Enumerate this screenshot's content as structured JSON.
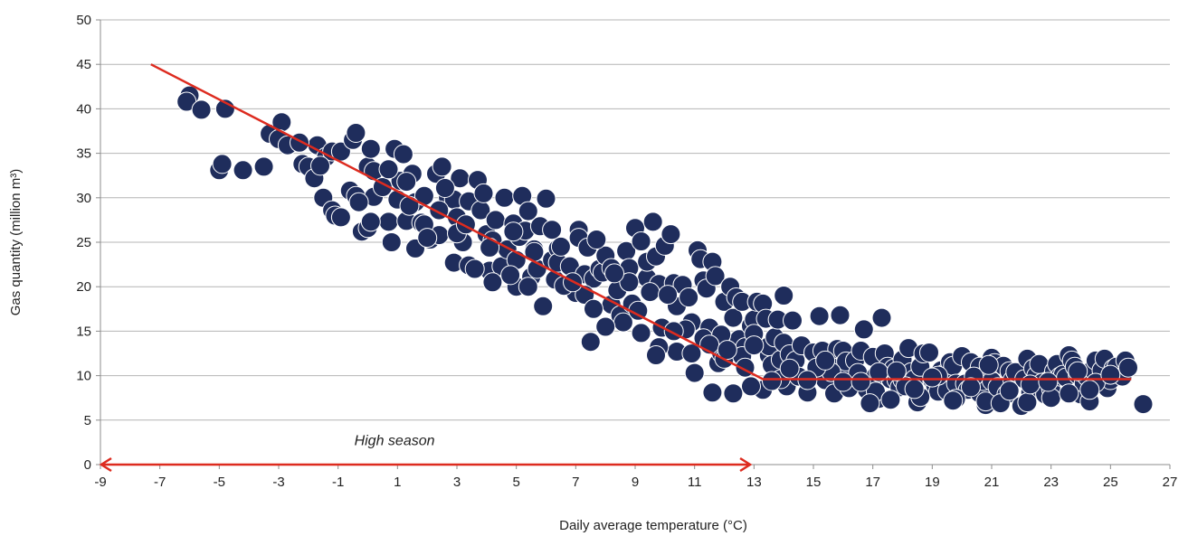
{
  "chart_data": {
    "type": "scatter",
    "xlabel": "Daily average temperature (°C)",
    "ylabel": "Gas quantity (million m³)",
    "xlim": [
      -9,
      27
    ],
    "ylim": [
      0,
      50
    ],
    "x_ticks": [
      -9,
      -7,
      -5,
      -3,
      -1,
      1,
      3,
      5,
      7,
      9,
      11,
      13,
      15,
      17,
      19,
      21,
      23,
      25,
      27
    ],
    "y_ticks": [
      0,
      5,
      10,
      15,
      20,
      25,
      30,
      35,
      40,
      45,
      50
    ],
    "grid": "horizontal",
    "legend": "none",
    "colors": {
      "points": "#1f2d5c",
      "fit_line": "#dd2b1f",
      "grid": "#b4b4b4",
      "axis": "#8c8c8c"
    },
    "fit_line": [
      [
        -7.3,
        45
      ],
      [
        13.3,
        9.6
      ],
      [
        25.7,
        9.6
      ]
    ],
    "annotation": {
      "text": "High season",
      "x_from": -9,
      "x_to": 12.9,
      "y": 0,
      "label_x": 0.9,
      "label_y": 2.2
    },
    "points": [
      [
        -6.0,
        41.5
      ],
      [
        -6.1,
        40.8
      ],
      [
        -5.6,
        39.9
      ],
      [
        -4.8,
        40.0
      ],
      [
        -5.0,
        33.1
      ],
      [
        -4.9,
        33.8
      ],
      [
        -4.2,
        33.1
      ],
      [
        -3.5,
        33.5
      ],
      [
        -3.3,
        37.2
      ],
      [
        -2.9,
        38.5
      ],
      [
        -3.0,
        36.6
      ],
      [
        -2.7,
        35.9
      ],
      [
        -2.2,
        33.8
      ],
      [
        -2.0,
        33.5
      ],
      [
        -1.8,
        32.2
      ],
      [
        -1.7,
        35.9
      ],
      [
        -1.5,
        30.0
      ],
      [
        -1.4,
        34.6
      ],
      [
        -1.2,
        35.2
      ],
      [
        -1.2,
        28.6
      ],
      [
        -1.1,
        28.0
      ],
      [
        -0.9,
        35.2
      ],
      [
        -0.6,
        30.8
      ],
      [
        -0.4,
        30.2
      ],
      [
        -0.5,
        36.5
      ],
      [
        -0.4,
        37.3
      ],
      [
        -0.2,
        26.2
      ],
      [
        0.0,
        33.5
      ],
      [
        0.1,
        35.5
      ],
      [
        0.0,
        26.6
      ],
      [
        0.2,
        33.0
      ],
      [
        0.2,
        30.1
      ],
      [
        0.5,
        31.2
      ],
      [
        0.7,
        27.3
      ],
      [
        0.9,
        35.5
      ],
      [
        1.0,
        29.8
      ],
      [
        1.2,
        34.9
      ],
      [
        1.1,
        31.9
      ],
      [
        1.3,
        27.4
      ],
      [
        1.5,
        32.7
      ],
      [
        1.6,
        29.5
      ],
      [
        1.6,
        24.3
      ],
      [
        1.8,
        27.2
      ],
      [
        1.9,
        30.2
      ],
      [
        2.1,
        25.3
      ],
      [
        2.3,
        32.7
      ],
      [
        2.4,
        25.8
      ],
      [
        2.5,
        33.5
      ],
      [
        2.7,
        30.0
      ],
      [
        2.9,
        29.8
      ],
      [
        2.9,
        22.7
      ],
      [
        3.1,
        32.2
      ],
      [
        3.0,
        27.8
      ],
      [
        3.2,
        25.0
      ],
      [
        3.4,
        29.6
      ],
      [
        3.4,
        22.4
      ],
      [
        3.7,
        32.0
      ],
      [
        3.8,
        28.6
      ],
      [
        3.9,
        30.5
      ],
      [
        4.0,
        25.9
      ],
      [
        4.1,
        21.8
      ],
      [
        4.2,
        25.2
      ],
      [
        4.3,
        27.5
      ],
      [
        4.5,
        22.3
      ],
      [
        4.6,
        30.0
      ],
      [
        4.7,
        24.2
      ],
      [
        4.9,
        27.1
      ],
      [
        5.0,
        23.0
      ],
      [
        5.0,
        20.0
      ],
      [
        5.1,
        25.6
      ],
      [
        5.2,
        30.2
      ],
      [
        5.3,
        26.3
      ],
      [
        5.4,
        28.5
      ],
      [
        5.5,
        21.1
      ],
      [
        5.6,
        24.2
      ],
      [
        5.7,
        22.0
      ],
      [
        5.8,
        26.8
      ],
      [
        6.0,
        29.9
      ],
      [
        6.2,
        23.0
      ],
      [
        6.3,
        20.8
      ],
      [
        6.4,
        24.3
      ],
      [
        6.4,
        22.7
      ],
      [
        6.8,
        22.3
      ],
      [
        7.0,
        19.3
      ],
      [
        7.1,
        26.4
      ],
      [
        7.1,
        25.5
      ],
      [
        7.4,
        24.4
      ],
      [
        7.3,
        21.4
      ],
      [
        7.5,
        13.8
      ],
      [
        7.6,
        20.9
      ],
      [
        7.8,
        22.0
      ],
      [
        7.9,
        21.6
      ],
      [
        8.0,
        23.5
      ],
      [
        8.2,
        22.1
      ],
      [
        8.2,
        18.0
      ],
      [
        8.4,
        19.6
      ],
      [
        8.5,
        16.8
      ],
      [
        8.7,
        24.0
      ],
      [
        8.8,
        22.1
      ],
      [
        8.9,
        18.1
      ],
      [
        9.0,
        26.6
      ],
      [
        9.2,
        25.1
      ],
      [
        9.4,
        21.0
      ],
      [
        9.4,
        22.8
      ],
      [
        9.6,
        27.3
      ],
      [
        9.7,
        23.4
      ],
      [
        9.8,
        20.3
      ],
      [
        9.9,
        15.4
      ],
      [
        10.0,
        24.6
      ],
      [
        10.2,
        25.9
      ],
      [
        10.3,
        20.4
      ],
      [
        10.4,
        17.8
      ],
      [
        10.6,
        20.2
      ],
      [
        10.8,
        18.8
      ],
      [
        10.9,
        16.0
      ],
      [
        11.1,
        24.1
      ],
      [
        11.2,
        23.1
      ],
      [
        11.3,
        20.7
      ],
      [
        11.4,
        19.8
      ],
      [
        11.5,
        15.4
      ],
      [
        11.6,
        22.8
      ],
      [
        11.7,
        21.2
      ],
      [
        11.8,
        11.4
      ],
      [
        11.9,
        12.5
      ],
      [
        12.0,
        18.3
      ],
      [
        12.0,
        11.9
      ],
      [
        12.2,
        20.0
      ],
      [
        12.3,
        16.5
      ],
      [
        12.4,
        18.8
      ],
      [
        12.5,
        14.1
      ],
      [
        12.6,
        18.3
      ],
      [
        12.7,
        13.2
      ],
      [
        12.9,
        15.6
      ],
      [
        13.0,
        16.3
      ],
      [
        13.0,
        14.7
      ],
      [
        13.1,
        18.3
      ],
      [
        13.3,
        18.1
      ],
      [
        13.4,
        16.4
      ],
      [
        13.5,
        12.3
      ],
      [
        13.5,
        13.3
      ],
      [
        13.6,
        11.2
      ],
      [
        13.7,
        14.3
      ],
      [
        13.8,
        16.3
      ],
      [
        13.9,
        11.8
      ],
      [
        14.0,
        19.0
      ],
      [
        14.0,
        13.7
      ],
      [
        14.1,
        8.8
      ],
      [
        14.2,
        12.4
      ],
      [
        14.3,
        16.2
      ],
      [
        14.4,
        11.7
      ],
      [
        14.6,
        13.4
      ],
      [
        14.8,
        8.1
      ],
      [
        15.0,
        12.6
      ],
      [
        15.2,
        16.7
      ],
      [
        15.3,
        12.8
      ],
      [
        15.4,
        9.5
      ],
      [
        15.5,
        11.3
      ],
      [
        15.7,
        8.0
      ],
      [
        15.8,
        13.0
      ],
      [
        15.9,
        16.8
      ],
      [
        16.0,
        10.2
      ],
      [
        16.0,
        12.8
      ],
      [
        16.1,
        11.6
      ],
      [
        16.3,
        9.0
      ],
      [
        16.4,
        11.7
      ],
      [
        16.5,
        10.3
      ],
      [
        16.6,
        12.8
      ],
      [
        16.7,
        15.2
      ],
      [
        16.8,
        8.4
      ],
      [
        17.0,
        12.1
      ],
      [
        17.1,
        10.0
      ],
      [
        17.2,
        7.4
      ],
      [
        17.3,
        16.5
      ],
      [
        17.4,
        12.5
      ],
      [
        17.5,
        11.0
      ],
      [
        17.6,
        9.6
      ],
      [
        17.7,
        10.8
      ],
      [
        17.8,
        9.5
      ],
      [
        17.9,
        8.7
      ],
      [
        18.0,
        9.5
      ],
      [
        18.0,
        11.8
      ],
      [
        18.2,
        13.1
      ],
      [
        18.3,
        10.4
      ],
      [
        18.4,
        9.6
      ],
      [
        18.5,
        7.0
      ],
      [
        18.6,
        11.0
      ],
      [
        18.7,
        12.5
      ],
      [
        18.9,
        12.6
      ],
      [
        19.0,
        9.5
      ],
      [
        19.1,
        8.9
      ],
      [
        19.2,
        8.2
      ],
      [
        19.3,
        10.6
      ],
      [
        19.4,
        10.2
      ],
      [
        19.5,
        8.3
      ],
      [
        19.6,
        11.5
      ],
      [
        19.7,
        11.1
      ],
      [
        19.8,
        9.1
      ],
      [
        20.0,
        12.2
      ],
      [
        20.1,
        9.1
      ],
      [
        20.2,
        8.4
      ],
      [
        20.3,
        11.5
      ],
      [
        20.5,
        10.2
      ],
      [
        20.6,
        8.0
      ],
      [
        20.6,
        11.0
      ],
      [
        20.7,
        9.4
      ],
      [
        20.8,
        6.7
      ],
      [
        20.8,
        7.1
      ],
      [
        20.9,
        10.7
      ],
      [
        21.0,
        9.4
      ],
      [
        21.0,
        12.0
      ],
      [
        21.1,
        11.4
      ],
      [
        21.2,
        8.7
      ],
      [
        21.4,
        11.1
      ],
      [
        21.5,
        7.9
      ],
      [
        21.6,
        10.5
      ],
      [
        21.7,
        9.5
      ],
      [
        21.8,
        10.4
      ],
      [
        22.0,
        6.6
      ],
      [
        22.1,
        9.6
      ],
      [
        22.2,
        11.9
      ],
      [
        22.3,
        8.1
      ],
      [
        22.4,
        10.8
      ],
      [
        22.5,
        10.0
      ],
      [
        22.6,
        11.3
      ],
      [
        22.7,
        9.2
      ],
      [
        22.8,
        7.9
      ],
      [
        23.0,
        8.5
      ],
      [
        23.1,
        10.5
      ],
      [
        23.2,
        11.3
      ],
      [
        23.3,
        9.9
      ],
      [
        23.4,
        10.1
      ],
      [
        23.5,
        9.8
      ],
      [
        23.6,
        12.3
      ],
      [
        23.7,
        11.7
      ],
      [
        23.8,
        11.0
      ],
      [
        23.9,
        10.1
      ],
      [
        24.0,
        7.9
      ],
      [
        24.1,
        9.2
      ],
      [
        24.2,
        9.9
      ],
      [
        24.3,
        7.1
      ],
      [
        24.4,
        10.7
      ],
      [
        24.5,
        11.7
      ],
      [
        24.6,
        9.1
      ],
      [
        24.7,
        10.6
      ],
      [
        24.8,
        11.9
      ],
      [
        24.9,
        8.6
      ],
      [
        25.0,
        9.5
      ],
      [
        25.1,
        10.8
      ],
      [
        25.2,
        11.0
      ],
      [
        25.4,
        9.9
      ],
      [
        25.5,
        11.7
      ],
      [
        25.6,
        10.9
      ],
      [
        26.1,
        6.8
      ],
      [
        17.1,
        8.2
      ],
      [
        17.6,
        7.3
      ],
      [
        18.1,
        8.8
      ],
      [
        18.6,
        7.6
      ],
      [
        19.2,
        10.0
      ],
      [
        19.8,
        7.4
      ],
      [
        20.4,
        9.9
      ],
      [
        21.3,
        6.9
      ],
      [
        22.2,
        7.0
      ],
      [
        23.0,
        7.5
      ],
      [
        23.9,
        10.5
      ],
      [
        24.5,
        9.2
      ],
      [
        16.9,
        6.9
      ],
      [
        15.6,
        10.4
      ],
      [
        16.2,
        8.6
      ],
      [
        15.1,
        10.9
      ],
      [
        14.5,
        9.9
      ],
      [
        13.9,
        9.6
      ],
      [
        13.3,
        8.4
      ],
      [
        12.9,
        8.8
      ],
      [
        12.3,
        8.0
      ],
      [
        11.6,
        8.1
      ],
      [
        11.0,
        10.3
      ],
      [
        10.4,
        12.7
      ],
      [
        9.8,
        13.2
      ],
      [
        9.2,
        14.8
      ],
      [
        8.6,
        16.0
      ],
      [
        8.0,
        15.5
      ],
      [
        7.3,
        19.1
      ],
      [
        6.6,
        20.1
      ],
      [
        5.9,
        17.8
      ],
      [
        5.4,
        20.0
      ],
      [
        4.8,
        21.3
      ],
      [
        4.2,
        20.5
      ],
      [
        3.6,
        22.0
      ],
      [
        3.0,
        26.0
      ],
      [
        2.4,
        28.6
      ],
      [
        1.9,
        27.0
      ],
      [
        1.3,
        31.8
      ],
      [
        0.7,
        33.2
      ],
      [
        0.1,
        27.3
      ],
      [
        -0.3,
        29.5
      ],
      [
        -0.9,
        27.8
      ],
      [
        -1.6,
        33.6
      ],
      [
        -2.3,
        36.2
      ],
      [
        6.5,
        24.5
      ],
      [
        7.7,
        25.3
      ],
      [
        8.8,
        20.5
      ],
      [
        9.5,
        19.4
      ],
      [
        10.1,
        19.1
      ],
      [
        10.7,
        15.2
      ],
      [
        11.3,
        14.2
      ],
      [
        11.9,
        14.6
      ],
      [
        12.6,
        12.2
      ],
      [
        13.0,
        13.4
      ],
      [
        13.6,
        9.4
      ],
      [
        14.2,
        10.8
      ],
      [
        14.8,
        9.5
      ],
      [
        15.4,
        11.7
      ],
      [
        16.0,
        9.3
      ],
      [
        16.6,
        9.3
      ],
      [
        17.2,
        10.4
      ],
      [
        17.8,
        10.5
      ],
      [
        18.4,
        8.5
      ],
      [
        19.0,
        9.8
      ],
      [
        19.7,
        7.2
      ],
      [
        20.3,
        8.7
      ],
      [
        20.9,
        11.2
      ],
      [
        21.6,
        8.3
      ],
      [
        22.3,
        9.0
      ],
      [
        22.9,
        9.3
      ],
      [
        23.6,
        8.0
      ],
      [
        24.3,
        8.4
      ],
      [
        25.0,
        10.1
      ],
      [
        4.1,
        24.4
      ],
      [
        4.9,
        26.2
      ],
      [
        5.6,
        23.9
      ],
      [
        6.2,
        26.4
      ],
      [
        6.9,
        20.5
      ],
      [
        7.6,
        17.5
      ],
      [
        8.3,
        21.5
      ],
      [
        9.1,
        17.3
      ],
      [
        9.7,
        12.3
      ],
      [
        10.3,
        15.0
      ],
      [
        10.9,
        12.5
      ],
      [
        11.5,
        13.5
      ],
      [
        12.1,
        12.9
      ],
      [
        12.7,
        10.9
      ],
      [
        3.3,
        27.0
      ],
      [
        2.6,
        31.1
      ],
      [
        2.0,
        25.5
      ],
      [
        1.4,
        29.1
      ],
      [
        0.8,
        25.0
      ]
    ]
  }
}
